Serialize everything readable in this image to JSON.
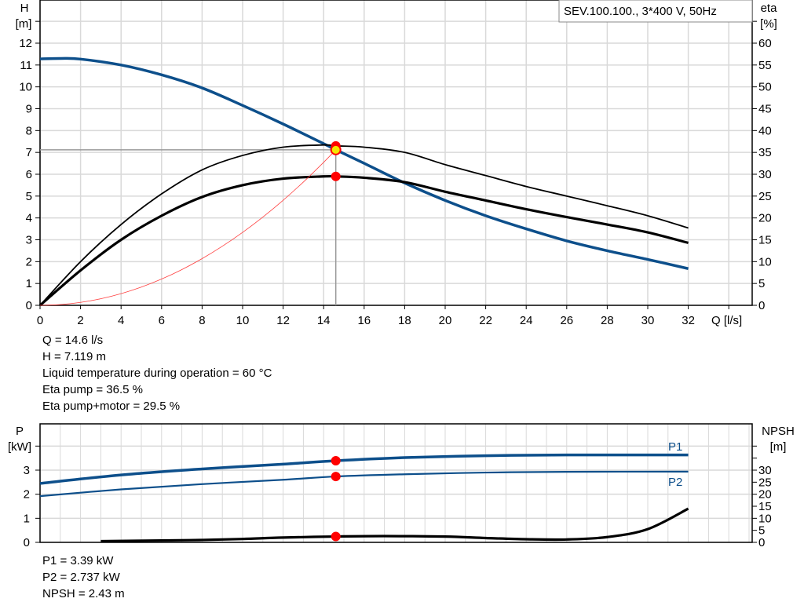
{
  "chart_data": [
    {
      "type": "line",
      "title_box": "SEV.100.100., 3*400 V, 50Hz",
      "xlabel": "Q [l/s]",
      "ylabel_left": [
        "H",
        "[m]"
      ],
      "ylabel_right": [
        "eta",
        "[%]"
      ],
      "xlim": [
        0,
        35.2
      ],
      "ylim_left": [
        0,
        14
      ],
      "ylim_right": [
        0,
        70
      ],
      "x_ticks": [
        0,
        2,
        4,
        6,
        8,
        10,
        12,
        14,
        16,
        18,
        20,
        22,
        24,
        26,
        28,
        30,
        32
      ],
      "y_ticks_left": [
        0,
        1,
        2,
        3,
        4,
        5,
        6,
        7,
        8,
        9,
        10,
        11,
        12
      ],
      "y_ticks_right": [
        0,
        5,
        10,
        15,
        20,
        25,
        30,
        35,
        40,
        45,
        50,
        55,
        60
      ],
      "grid": true,
      "colors": {
        "head": "#0d4f8b",
        "eta": "#000000",
        "system": "#ff3030",
        "point": "#ff0000",
        "duty": "#f5e600"
      },
      "series": [
        {
          "id": "head",
          "axis": "left",
          "x": [
            0,
            1,
            2,
            4,
            6,
            8,
            10,
            12,
            14,
            14.6,
            16,
            18,
            20,
            22,
            24,
            26,
            28,
            30,
            32
          ],
          "y": [
            11.28,
            11.3,
            11.27,
            11.0,
            10.55,
            9.95,
            9.15,
            8.3,
            7.4,
            7.119,
            6.5,
            5.6,
            4.8,
            4.1,
            3.5,
            2.95,
            2.5,
            2.1,
            1.68
          ]
        },
        {
          "id": "eta-pump",
          "axis": "right",
          "x": [
            0,
            2,
            4,
            6,
            8,
            10,
            12,
            14,
            14.6,
            16,
            18,
            20,
            22,
            24,
            26,
            28,
            30,
            32
          ],
          "y": [
            0,
            10,
            18.5,
            25.5,
            31,
            34.3,
            36.2,
            36.7,
            36.5,
            36.2,
            35,
            32.2,
            29.7,
            27.2,
            25,
            22.8,
            20.5,
            17.7
          ]
        },
        {
          "id": "eta-pump-motor",
          "axis": "right",
          "x": [
            0,
            2,
            4,
            6,
            8,
            10,
            12,
            14,
            14.6,
            16,
            18,
            20,
            22,
            24,
            26,
            28,
            30,
            32
          ],
          "y": [
            0,
            8,
            15,
            20.5,
            24.8,
            27.5,
            29,
            29.5,
            29.5,
            29.2,
            28.2,
            26,
            24,
            22,
            20.2,
            18.5,
            16.7,
            14.3
          ]
        },
        {
          "id": "system-curve",
          "axis": "left",
          "x": [
            0,
            1,
            2,
            3,
            4,
            5,
            6,
            7,
            8,
            9,
            10,
            11,
            12,
            13,
            14,
            14.6
          ],
          "y": [
            0,
            0.033,
            0.134,
            0.301,
            0.534,
            0.835,
            1.202,
            1.636,
            2.137,
            2.705,
            3.34,
            4.041,
            4.809,
            5.644,
            6.546,
            7.119
          ]
        }
      ],
      "duty_point": {
        "Q": 14.6,
        "H": 7.119,
        "eta_pump": 36.5,
        "eta_pump_motor": 29.5
      }
    },
    {
      "type": "line",
      "ylabel_left": [
        "P",
        "[kW]"
      ],
      "ylabel_right": [
        "NPSH",
        "[m]"
      ],
      "xlim": [
        0,
        35.2
      ],
      "ylim_left": [
        0,
        4.9
      ],
      "ylim_right": [
        0,
        49
      ],
      "y_ticks_left": [
        0,
        1,
        2,
        3
      ],
      "y_ticks_right": [
        0,
        5,
        10,
        15,
        20,
        25,
        30
      ],
      "grid": true,
      "series": [
        {
          "id": "P1",
          "name": "P1",
          "axis": "left",
          "x": [
            0,
            4,
            8,
            12,
            14.6,
            18,
            22,
            26,
            32
          ],
          "y": [
            2.45,
            2.8,
            3.05,
            3.25,
            3.39,
            3.52,
            3.6,
            3.63,
            3.63
          ]
        },
        {
          "id": "P2",
          "name": "P2",
          "axis": "left",
          "x": [
            0,
            4,
            8,
            12,
            14.6,
            18,
            22,
            26,
            32
          ],
          "y": [
            1.92,
            2.2,
            2.42,
            2.6,
            2.737,
            2.83,
            2.9,
            2.93,
            2.94
          ]
        },
        {
          "id": "NPSH",
          "axis": "right",
          "x": [
            3,
            6,
            8,
            10,
            12,
            14.6,
            17,
            20,
            22,
            24,
            26,
            28,
            30,
            32
          ],
          "y": [
            0.5,
            0.8,
            1.0,
            1.4,
            2.0,
            2.43,
            2.6,
            2.4,
            1.8,
            1.3,
            1.2,
            2.2,
            5.5,
            14
          ]
        }
      ],
      "duty_point": {
        "Q": 14.6,
        "P1": 3.39,
        "P2": 2.737,
        "NPSH": 2.43
      }
    }
  ],
  "readouts_top": [
    "Q = 14.6 l/s",
    "H = 7.119 m",
    "Liquid temperature during operation = 60 °C",
    "Eta pump = 36.5 %",
    "Eta pump+motor = 29.5 %"
  ],
  "readouts_bottom": [
    "P1 = 3.39 kW",
    "P2 = 2.737 kW",
    "NPSH = 2.43 m"
  ]
}
